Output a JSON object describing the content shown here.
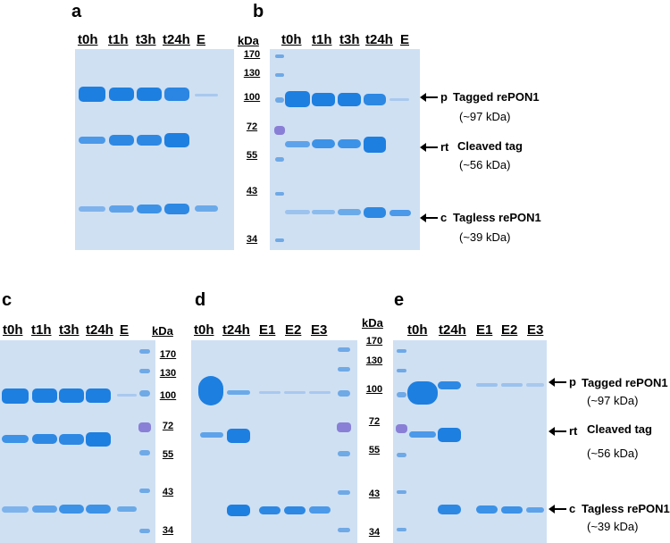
{
  "panels": {
    "a": {
      "label": "a",
      "lanes": [
        "t0h",
        "t1h",
        "t3h",
        "t24h",
        "E"
      ]
    },
    "b": {
      "label": "b",
      "lanes": [
        "t0h",
        "t1h",
        "t3h",
        "t24h",
        "E"
      ]
    },
    "c": {
      "label": "c",
      "lanes": [
        "t0h",
        "t1h",
        "t3h",
        "t24h",
        "E"
      ]
    },
    "d": {
      "label": "d",
      "lanes": [
        "t0h",
        "t24h",
        "E1",
        "E2",
        "E3"
      ]
    },
    "e": {
      "label": "e",
      "lanes": [
        "t0h",
        "t24h",
        "E1",
        "E2",
        "E3"
      ]
    }
  },
  "marker": {
    "header": "kDa",
    "sizes": [
      "170",
      "130",
      "100",
      "72",
      "55",
      "43",
      "34"
    ]
  },
  "annotations": {
    "p": {
      "letter": "p",
      "name": "Tagged rePON1",
      "size": "(~97 kDa)"
    },
    "rt": {
      "letter": "rt",
      "name": "Cleaved tag",
      "size": "(~56 kDa)"
    },
    "c": {
      "letter": "c",
      "name": "Tagless rePON1",
      "size": "(~39 kDa)"
    }
  },
  "colors": {
    "gel": "#cfe0f3",
    "band_strong": "#1d7fe0",
    "band_weak": "#7fb3ec",
    "ladder": "#6fa9e6",
    "ladder_72": "#8a7fd6"
  }
}
